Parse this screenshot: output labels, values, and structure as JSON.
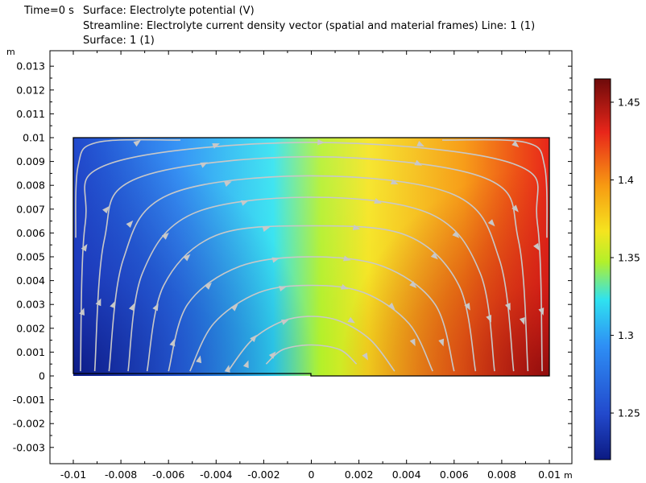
{
  "header": {
    "line1_time": "Time=0 s",
    "line1_surface": "Surface: Electrolyte potential (V)",
    "line2": "Streamline: Electrolyte current density vector (spatial and material frames)  Line: 1 (1)",
    "line3": "Surface: 1 (1)"
  },
  "chart_data": {
    "type": "heatmap",
    "title": "Time=0 s  Surface: Electrolyte potential (V)",
    "subtitle": [
      "Streamline: Electrolyte current density vector (spatial and material frames)  Line: 1 (1)",
      "Surface: 1 (1)"
    ],
    "xunit": "m",
    "yunit": "m",
    "xlim": [
      -0.0105,
      0.0111
    ],
    "ylim": [
      -0.0037,
      0.0133
    ],
    "xticks": [
      "-0.01",
      "-0.008",
      "-0.006",
      "-0.004",
      "-0.002",
      "0",
      "0.002",
      "0.004",
      "0.006",
      "0.008",
      "0.01"
    ],
    "xtick_values": [
      -0.01,
      -0.008,
      -0.006,
      -0.004,
      -0.002,
      0,
      0.002,
      0.004,
      0.006,
      0.008,
      0.01
    ],
    "yticks": [
      "-0.003",
      "-0.002",
      "-0.001",
      "0",
      "0.001",
      "0.002",
      "0.003",
      "0.004",
      "0.005",
      "0.006",
      "0.007",
      "0.008",
      "0.009",
      "0.01",
      "0.011",
      "0.012",
      "0.013"
    ],
    "ytick_values": [
      -0.003,
      -0.002,
      -0.001,
      0,
      0.001,
      0.002,
      0.003,
      0.004,
      0.005,
      0.006,
      0.007,
      0.008,
      0.009,
      0.01,
      0.011,
      0.012,
      0.013
    ],
    "domain": {
      "x": [
        -0.01,
        0.01
      ],
      "y": [
        0,
        0.01
      ],
      "notch_x": 0.0,
      "notch_depth": 0.0001
    },
    "surface": {
      "quantity": "Electrolyte potential",
      "unit": "V",
      "min": 1.22,
      "max": 1.465,
      "corner_values": {
        "bottom_left": 1.225,
        "top_left": 1.3,
        "top_center": 1.35,
        "top_right": 1.4,
        "bottom_right": 1.465
      }
    },
    "colorbar": {
      "min": 1.22,
      "max": 1.465,
      "ticks": [
        "1.25",
        "1.3",
        "1.35",
        "1.4",
        "1.45"
      ],
      "tick_values": [
        1.25,
        1.3,
        1.35,
        1.4,
        1.45
      ],
      "colormap": "Rainbow",
      "colors": [
        "#0c1a82",
        "#2249cc",
        "#2e8ff5",
        "#2fe2f0",
        "#b3f02a",
        "#f5e41f",
        "#f79a12",
        "#e8261a",
        "#6e0a0a"
      ]
    },
    "streamlines": {
      "color": "#c8c8c8",
      "lines": [
        {
          "name": "arc-1",
          "points": [
            [
              -0.0019,
              0.0005
            ],
            [
              -0.0012,
              0.0011
            ],
            [
              0.0,
              0.0013
            ],
            [
              0.0012,
              0.0011
            ],
            [
              0.0019,
              0.0005
            ]
          ]
        },
        {
          "name": "arc-2",
          "points": [
            [
              -0.0035,
              0.0002
            ],
            [
              -0.0025,
              0.0015
            ],
            [
              -0.0012,
              0.0023
            ],
            [
              0.0,
              0.0025
            ],
            [
              0.0012,
              0.0023
            ],
            [
              0.0025,
              0.0015
            ],
            [
              0.0035,
              0.0002
            ]
          ]
        },
        {
          "name": "arc-3",
          "points": [
            [
              -0.0051,
              0.0002
            ],
            [
              -0.0041,
              0.0022
            ],
            [
              -0.0022,
              0.0035
            ],
            [
              0.0,
              0.0038
            ],
            [
              0.0022,
              0.0035
            ],
            [
              0.0041,
              0.0022
            ],
            [
              0.0051,
              0.0002
            ]
          ]
        },
        {
          "name": "arc-4",
          "points": [
            [
              -0.006,
              0.0002
            ],
            [
              -0.0052,
              0.003
            ],
            [
              -0.003,
              0.0046
            ],
            [
              0.0,
              0.005
            ],
            [
              0.003,
              0.0046
            ],
            [
              0.0052,
              0.003
            ],
            [
              0.006,
              0.0002
            ]
          ]
        },
        {
          "name": "arc-5",
          "points": [
            [
              -0.0069,
              0.0002
            ],
            [
              -0.0062,
              0.0038
            ],
            [
              -0.004,
              0.0059
            ],
            [
              0.0,
              0.0063
            ],
            [
              0.004,
              0.0059
            ],
            [
              0.0062,
              0.0038
            ],
            [
              0.0069,
              0.0002
            ]
          ]
        },
        {
          "name": "arc-6",
          "points": [
            [
              -0.0077,
              0.0002
            ],
            [
              -0.0071,
              0.0043
            ],
            [
              -0.005,
              0.0068
            ],
            [
              0.0,
              0.0075
            ],
            [
              0.005,
              0.0068
            ],
            [
              0.0071,
              0.0043
            ],
            [
              0.0077,
              0.0002
            ]
          ]
        },
        {
          "name": "arc-7",
          "points": [
            [
              -0.0085,
              0.0002
            ],
            [
              -0.0079,
              0.0049
            ],
            [
              -0.006,
              0.0076
            ],
            [
              0.0,
              0.0084
            ],
            [
              0.006,
              0.0076
            ],
            [
              0.0079,
              0.0049
            ],
            [
              0.0085,
              0.0002
            ]
          ]
        },
        {
          "name": "arc-8",
          "points": [
            [
              -0.0091,
              0.0002
            ],
            [
              -0.0087,
              0.0057
            ],
            [
              -0.0073,
              0.0083
            ],
            [
              0.0,
              0.0092
            ],
            [
              0.0073,
              0.0083
            ],
            [
              0.0087,
              0.0057
            ],
            [
              0.0091,
              0.0002
            ]
          ]
        },
        {
          "name": "arc-9",
          "points": [
            [
              -0.0097,
              0.0002
            ],
            [
              -0.0095,
              0.0064
            ],
            [
              -0.0085,
              0.0089
            ],
            [
              0.0,
              0.0098
            ],
            [
              0.0085,
              0.0089
            ],
            [
              0.0095,
              0.0064
            ],
            [
              0.0097,
              0.0002
            ]
          ]
        },
        {
          "name": "corner-left",
          "points": [
            [
              -0.0099,
              0.0058
            ],
            [
              -0.0098,
              0.0088
            ],
            [
              -0.009,
              0.0098
            ],
            [
              -0.0055,
              0.0099
            ]
          ]
        },
        {
          "name": "corner-right",
          "points": [
            [
              0.0099,
              0.0058
            ],
            [
              0.0098,
              0.0088
            ],
            [
              0.009,
              0.0098
            ],
            [
              0.0055,
              0.0099
            ]
          ]
        }
      ],
      "arrows": [
        [
          -0.0027,
          0.0005
        ],
        [
          -0.0016,
          0.0009
        ],
        [
          -0.0035,
          0.0003
        ],
        [
          -0.0024,
          0.0016
        ],
        [
          -0.0011,
          0.0023
        ],
        [
          0.0017,
          0.0023
        ],
        [
          0.0023,
          0.0008
        ],
        [
          -0.0047,
          0.0007
        ],
        [
          -0.0032,
          0.0029
        ],
        [
          -0.0012,
          0.0037
        ],
        [
          0.0014,
          0.0037
        ],
        [
          0.0034,
          0.0029
        ],
        [
          0.0043,
          0.0014
        ],
        [
          -0.0058,
          0.0014
        ],
        [
          -0.0043,
          0.0038
        ],
        [
          -0.0015,
          0.0049
        ],
        [
          0.0015,
          0.0049
        ],
        [
          0.0043,
          0.0038
        ],
        [
          0.0055,
          0.0014
        ],
        [
          -0.0065,
          0.0029
        ],
        [
          -0.0052,
          0.005
        ],
        [
          -0.0019,
          0.0062
        ],
        [
          0.0019,
          0.0062
        ],
        [
          0.0052,
          0.005
        ],
        [
          0.0066,
          0.0029
        ],
        [
          -0.0075,
          0.0029
        ],
        [
          -0.0061,
          0.0059
        ],
        [
          -0.0028,
          0.0073
        ],
        [
          0.0028,
          0.0073
        ],
        [
          0.0061,
          0.0059
        ],
        [
          0.0075,
          0.0024
        ],
        [
          -0.0083,
          0.003
        ],
        [
          -0.0076,
          0.0064
        ],
        [
          -0.0035,
          0.0081
        ],
        [
          0.0035,
          0.0081
        ],
        [
          0.0076,
          0.0064
        ],
        [
          0.0083,
          0.0029
        ],
        [
          -0.0089,
          0.0031
        ],
        [
          -0.0086,
          0.007
        ],
        [
          -0.0045,
          0.0089
        ],
        [
          0.0045,
          0.0089
        ],
        [
          0.0086,
          0.007
        ],
        [
          0.0089,
          0.0023
        ],
        [
          -0.0096,
          0.0027
        ],
        [
          -0.0095,
          0.0054
        ],
        [
          -0.004,
          0.0097
        ],
        [
          0.0004,
          0.0098
        ],
        [
          0.0046,
          0.0097
        ],
        [
          0.0095,
          0.0054
        ],
        [
          0.0097,
          0.0027
        ],
        [
          -0.0073,
          0.0098
        ],
        [
          0.0086,
          0.0097
        ]
      ]
    }
  }
}
